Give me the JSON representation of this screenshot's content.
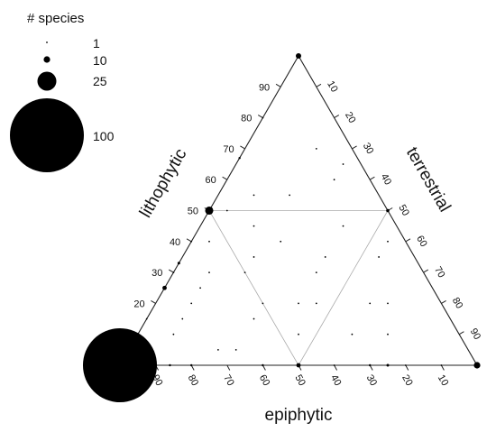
{
  "chart_data": {
    "type": "scatter",
    "subtype": "ternary",
    "axes": {
      "left": {
        "label": "lithophytic",
        "ticks": [
          "10",
          "20",
          "30",
          "40",
          "50",
          "60",
          "70",
          "80",
          "90"
        ]
      },
      "right": {
        "label": "terrestrial",
        "ticks": [
          "10",
          "20",
          "30",
          "40",
          "50",
          "60",
          "70",
          "80",
          "90"
        ]
      },
      "bottom": {
        "label": "epiphytic",
        "ticks": [
          "90",
          "80",
          "70",
          "60",
          "50",
          "40",
          "30",
          "20",
          "10"
        ]
      }
    },
    "size_legend": {
      "title": "# species",
      "entries": [
        {
          "label": "1",
          "value": 1
        },
        {
          "label": "10",
          "value": 10
        },
        {
          "label": "25",
          "value": 25
        },
        {
          "label": "100",
          "value": 100
        }
      ]
    },
    "reference_lines": "midpoint triangle connecting the 50% points of each side",
    "points": [
      {
        "epiphytic": 100,
        "lithophytic": 0,
        "terrestrial": 0,
        "species": 100
      },
      {
        "epiphytic": 0,
        "lithophytic": 0,
        "terrestrial": 100,
        "species": 10
      },
      {
        "epiphytic": 0,
        "lithophytic": 100,
        "terrestrial": 0,
        "species": 8
      },
      {
        "epiphytic": 50,
        "lithophytic": 50,
        "terrestrial": 0,
        "species": 12
      },
      {
        "epiphytic": 50,
        "lithophytic": 0,
        "terrestrial": 50,
        "species": 6
      },
      {
        "epiphytic": 0,
        "lithophytic": 50,
        "terrestrial": 50,
        "species": 4
      },
      {
        "epiphytic": 75,
        "lithophytic": 25,
        "terrestrial": 0,
        "species": 6
      },
      {
        "epiphytic": 67,
        "lithophytic": 33,
        "terrestrial": 0,
        "species": 3
      },
      {
        "epiphytic": 90,
        "lithophytic": 10,
        "terrestrial": 0,
        "species": 3
      },
      {
        "epiphytic": 33,
        "lithophytic": 67,
        "terrestrial": 0,
        "species": 2
      },
      {
        "epiphytic": 25,
        "lithophytic": 0,
        "terrestrial": 75,
        "species": 3
      },
      {
        "epiphytic": 80,
        "lithophytic": 0,
        "terrestrial": 20,
        "species": 2
      },
      {
        "epiphytic": 60,
        "lithophytic": 0,
        "terrestrial": 40,
        "species": 2
      },
      {
        "epiphytic": 30,
        "lithophytic": 0,
        "terrestrial": 70,
        "species": 2
      },
      {
        "epiphytic": 86,
        "lithophytic": 0,
        "terrestrial": 14,
        "species": 2
      },
      {
        "epiphytic": 20,
        "lithophytic": 0,
        "terrestrial": 80,
        "species": 1
      },
      {
        "epiphytic": 40,
        "lithophytic": 0,
        "terrestrial": 60,
        "species": 1
      },
      {
        "epiphytic": 10,
        "lithophytic": 0,
        "terrestrial": 90,
        "species": 1
      },
      {
        "epiphytic": 70,
        "lithophytic": 30,
        "terrestrial": 0,
        "species": 1
      },
      {
        "epiphytic": 85,
        "lithophytic": 15,
        "terrestrial": 0,
        "species": 1
      },
      {
        "epiphytic": 20,
        "lithophytic": 80,
        "terrestrial": 0,
        "species": 1
      },
      {
        "epiphytic": 60,
        "lithophytic": 40,
        "terrestrial": 0,
        "species": 1
      },
      {
        "epiphytic": 45,
        "lithophytic": 35,
        "terrestrial": 20,
        "species": 1
      },
      {
        "epiphytic": 60,
        "lithophytic": 30,
        "terrestrial": 10,
        "species": 1
      },
      {
        "epiphytic": 50,
        "lithophytic": 30,
        "terrestrial": 20,
        "species": 1
      },
      {
        "epiphytic": 70,
        "lithophytic": 20,
        "terrestrial": 10,
        "species": 1
      },
      {
        "epiphytic": 65,
        "lithophytic": 25,
        "terrestrial": 10,
        "species": 1
      },
      {
        "epiphytic": 75,
        "lithophytic": 15,
        "terrestrial": 10,
        "species": 1
      },
      {
        "epiphytic": 80,
        "lithophytic": 10,
        "terrestrial": 10,
        "species": 1
      },
      {
        "epiphytic": 55,
        "lithophytic": 15,
        "terrestrial": 30,
        "species": 1
      },
      {
        "epiphytic": 40,
        "lithophytic": 20,
        "terrestrial": 40,
        "species": 1
      },
      {
        "epiphytic": 35,
        "lithophytic": 40,
        "terrestrial": 25,
        "species": 1
      },
      {
        "epiphytic": 30,
        "lithophytic": 30,
        "terrestrial": 40,
        "species": 1
      },
      {
        "epiphytic": 25,
        "lithophytic": 35,
        "terrestrial": 40,
        "species": 1
      },
      {
        "epiphytic": 20,
        "lithophytic": 20,
        "terrestrial": 60,
        "species": 1
      },
      {
        "epiphytic": 15,
        "lithophytic": 45,
        "terrestrial": 40,
        "species": 1
      },
      {
        "epiphytic": 10,
        "lithophytic": 60,
        "terrestrial": 30,
        "species": 1
      },
      {
        "epiphytic": 5,
        "lithophytic": 65,
        "terrestrial": 30,
        "species": 1
      },
      {
        "epiphytic": 10,
        "lithophytic": 70,
        "terrestrial": 20,
        "species": 1
      },
      {
        "epiphytic": 45,
        "lithophytic": 10,
        "terrestrial": 45,
        "species": 1
      },
      {
        "epiphytic": 30,
        "lithophytic": 10,
        "terrestrial": 60,
        "species": 1
      },
      {
        "epiphytic": 20,
        "lithophytic": 10,
        "terrestrial": 70,
        "species": 1
      },
      {
        "epiphytic": 15,
        "lithophytic": 20,
        "terrestrial": 65,
        "species": 1
      },
      {
        "epiphytic": 50,
        "lithophytic": 20,
        "terrestrial": 30,
        "species": 1
      },
      {
        "epiphytic": 40,
        "lithophytic": 45,
        "terrestrial": 15,
        "species": 1
      },
      {
        "epiphytic": 55,
        "lithophytic": 40,
        "terrestrial": 5,
        "species": 1
      },
      {
        "epiphytic": 45,
        "lithophytic": 50,
        "terrestrial": 5,
        "species": 1
      },
      {
        "epiphytic": 35,
        "lithophytic": 55,
        "terrestrial": 10,
        "species": 1
      },
      {
        "epiphytic": 65,
        "lithophytic": 5,
        "terrestrial": 30,
        "species": 1
      },
      {
        "epiphytic": 70,
        "lithophytic": 5,
        "terrestrial": 25,
        "species": 1
      },
      {
        "epiphytic": 25,
        "lithophytic": 55,
        "terrestrial": 20,
        "species": 1
      },
      {
        "epiphytic": 5,
        "lithophytic": 40,
        "terrestrial": 55,
        "species": 1
      },
      {
        "epiphytic": 10,
        "lithophytic": 35,
        "terrestrial": 55,
        "species": 1
      },
      {
        "epiphytic": 35,
        "lithophytic": 20,
        "terrestrial": 45,
        "species": 1
      }
    ]
  }
}
